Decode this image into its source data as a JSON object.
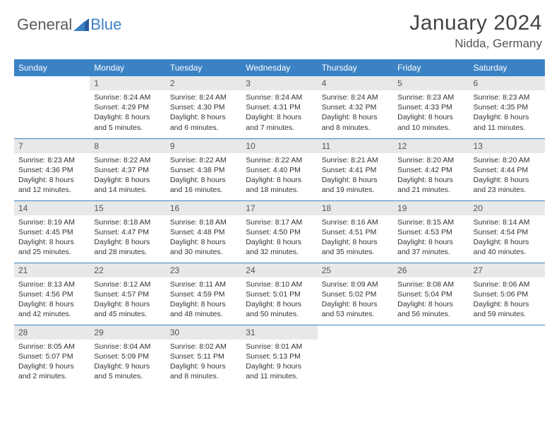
{
  "logo": {
    "general": "General",
    "blue": "Blue"
  },
  "title": "January 2024",
  "location": "Nidda, Germany",
  "colors": {
    "header_bg": "#3b82c4",
    "header_text": "#ffffff",
    "daynum_bg": "#e8e8e8",
    "border": "#3b82c4",
    "body_bg": "#ffffff"
  },
  "day_labels": [
    "Sunday",
    "Monday",
    "Tuesday",
    "Wednesday",
    "Thursday",
    "Friday",
    "Saturday"
  ],
  "weeks": [
    [
      null,
      {
        "num": "1",
        "sunrise": "Sunrise: 8:24 AM",
        "sunset": "Sunset: 4:29 PM",
        "daylight": "Daylight: 8 hours and 5 minutes."
      },
      {
        "num": "2",
        "sunrise": "Sunrise: 8:24 AM",
        "sunset": "Sunset: 4:30 PM",
        "daylight": "Daylight: 8 hours and 6 minutes."
      },
      {
        "num": "3",
        "sunrise": "Sunrise: 8:24 AM",
        "sunset": "Sunset: 4:31 PM",
        "daylight": "Daylight: 8 hours and 7 minutes."
      },
      {
        "num": "4",
        "sunrise": "Sunrise: 8:24 AM",
        "sunset": "Sunset: 4:32 PM",
        "daylight": "Daylight: 8 hours and 8 minutes."
      },
      {
        "num": "5",
        "sunrise": "Sunrise: 8:23 AM",
        "sunset": "Sunset: 4:33 PM",
        "daylight": "Daylight: 8 hours and 10 minutes."
      },
      {
        "num": "6",
        "sunrise": "Sunrise: 8:23 AM",
        "sunset": "Sunset: 4:35 PM",
        "daylight": "Daylight: 8 hours and 11 minutes."
      }
    ],
    [
      {
        "num": "7",
        "sunrise": "Sunrise: 8:23 AM",
        "sunset": "Sunset: 4:36 PM",
        "daylight": "Daylight: 8 hours and 12 minutes."
      },
      {
        "num": "8",
        "sunrise": "Sunrise: 8:22 AM",
        "sunset": "Sunset: 4:37 PM",
        "daylight": "Daylight: 8 hours and 14 minutes."
      },
      {
        "num": "9",
        "sunrise": "Sunrise: 8:22 AM",
        "sunset": "Sunset: 4:38 PM",
        "daylight": "Daylight: 8 hours and 16 minutes."
      },
      {
        "num": "10",
        "sunrise": "Sunrise: 8:22 AM",
        "sunset": "Sunset: 4:40 PM",
        "daylight": "Daylight: 8 hours and 18 minutes."
      },
      {
        "num": "11",
        "sunrise": "Sunrise: 8:21 AM",
        "sunset": "Sunset: 4:41 PM",
        "daylight": "Daylight: 8 hours and 19 minutes."
      },
      {
        "num": "12",
        "sunrise": "Sunrise: 8:20 AM",
        "sunset": "Sunset: 4:42 PM",
        "daylight": "Daylight: 8 hours and 21 minutes."
      },
      {
        "num": "13",
        "sunrise": "Sunrise: 8:20 AM",
        "sunset": "Sunset: 4:44 PM",
        "daylight": "Daylight: 8 hours and 23 minutes."
      }
    ],
    [
      {
        "num": "14",
        "sunrise": "Sunrise: 8:19 AM",
        "sunset": "Sunset: 4:45 PM",
        "daylight": "Daylight: 8 hours and 25 minutes."
      },
      {
        "num": "15",
        "sunrise": "Sunrise: 8:18 AM",
        "sunset": "Sunset: 4:47 PM",
        "daylight": "Daylight: 8 hours and 28 minutes."
      },
      {
        "num": "16",
        "sunrise": "Sunrise: 8:18 AM",
        "sunset": "Sunset: 4:48 PM",
        "daylight": "Daylight: 8 hours and 30 minutes."
      },
      {
        "num": "17",
        "sunrise": "Sunrise: 8:17 AM",
        "sunset": "Sunset: 4:50 PM",
        "daylight": "Daylight: 8 hours and 32 minutes."
      },
      {
        "num": "18",
        "sunrise": "Sunrise: 8:16 AM",
        "sunset": "Sunset: 4:51 PM",
        "daylight": "Daylight: 8 hours and 35 minutes."
      },
      {
        "num": "19",
        "sunrise": "Sunrise: 8:15 AM",
        "sunset": "Sunset: 4:53 PM",
        "daylight": "Daylight: 8 hours and 37 minutes."
      },
      {
        "num": "20",
        "sunrise": "Sunrise: 8:14 AM",
        "sunset": "Sunset: 4:54 PM",
        "daylight": "Daylight: 8 hours and 40 minutes."
      }
    ],
    [
      {
        "num": "21",
        "sunrise": "Sunrise: 8:13 AM",
        "sunset": "Sunset: 4:56 PM",
        "daylight": "Daylight: 8 hours and 42 minutes."
      },
      {
        "num": "22",
        "sunrise": "Sunrise: 8:12 AM",
        "sunset": "Sunset: 4:57 PM",
        "daylight": "Daylight: 8 hours and 45 minutes."
      },
      {
        "num": "23",
        "sunrise": "Sunrise: 8:11 AM",
        "sunset": "Sunset: 4:59 PM",
        "daylight": "Daylight: 8 hours and 48 minutes."
      },
      {
        "num": "24",
        "sunrise": "Sunrise: 8:10 AM",
        "sunset": "Sunset: 5:01 PM",
        "daylight": "Daylight: 8 hours and 50 minutes."
      },
      {
        "num": "25",
        "sunrise": "Sunrise: 8:09 AM",
        "sunset": "Sunset: 5:02 PM",
        "daylight": "Daylight: 8 hours and 53 minutes."
      },
      {
        "num": "26",
        "sunrise": "Sunrise: 8:08 AM",
        "sunset": "Sunset: 5:04 PM",
        "daylight": "Daylight: 8 hours and 56 minutes."
      },
      {
        "num": "27",
        "sunrise": "Sunrise: 8:06 AM",
        "sunset": "Sunset: 5:06 PM",
        "daylight": "Daylight: 8 hours and 59 minutes."
      }
    ],
    [
      {
        "num": "28",
        "sunrise": "Sunrise: 8:05 AM",
        "sunset": "Sunset: 5:07 PM",
        "daylight": "Daylight: 9 hours and 2 minutes."
      },
      {
        "num": "29",
        "sunrise": "Sunrise: 8:04 AM",
        "sunset": "Sunset: 5:09 PM",
        "daylight": "Daylight: 9 hours and 5 minutes."
      },
      {
        "num": "30",
        "sunrise": "Sunrise: 8:02 AM",
        "sunset": "Sunset: 5:11 PM",
        "daylight": "Daylight: 9 hours and 8 minutes."
      },
      {
        "num": "31",
        "sunrise": "Sunrise: 8:01 AM",
        "sunset": "Sunset: 5:13 PM",
        "daylight": "Daylight: 9 hours and 11 minutes."
      },
      null,
      null,
      null
    ]
  ]
}
